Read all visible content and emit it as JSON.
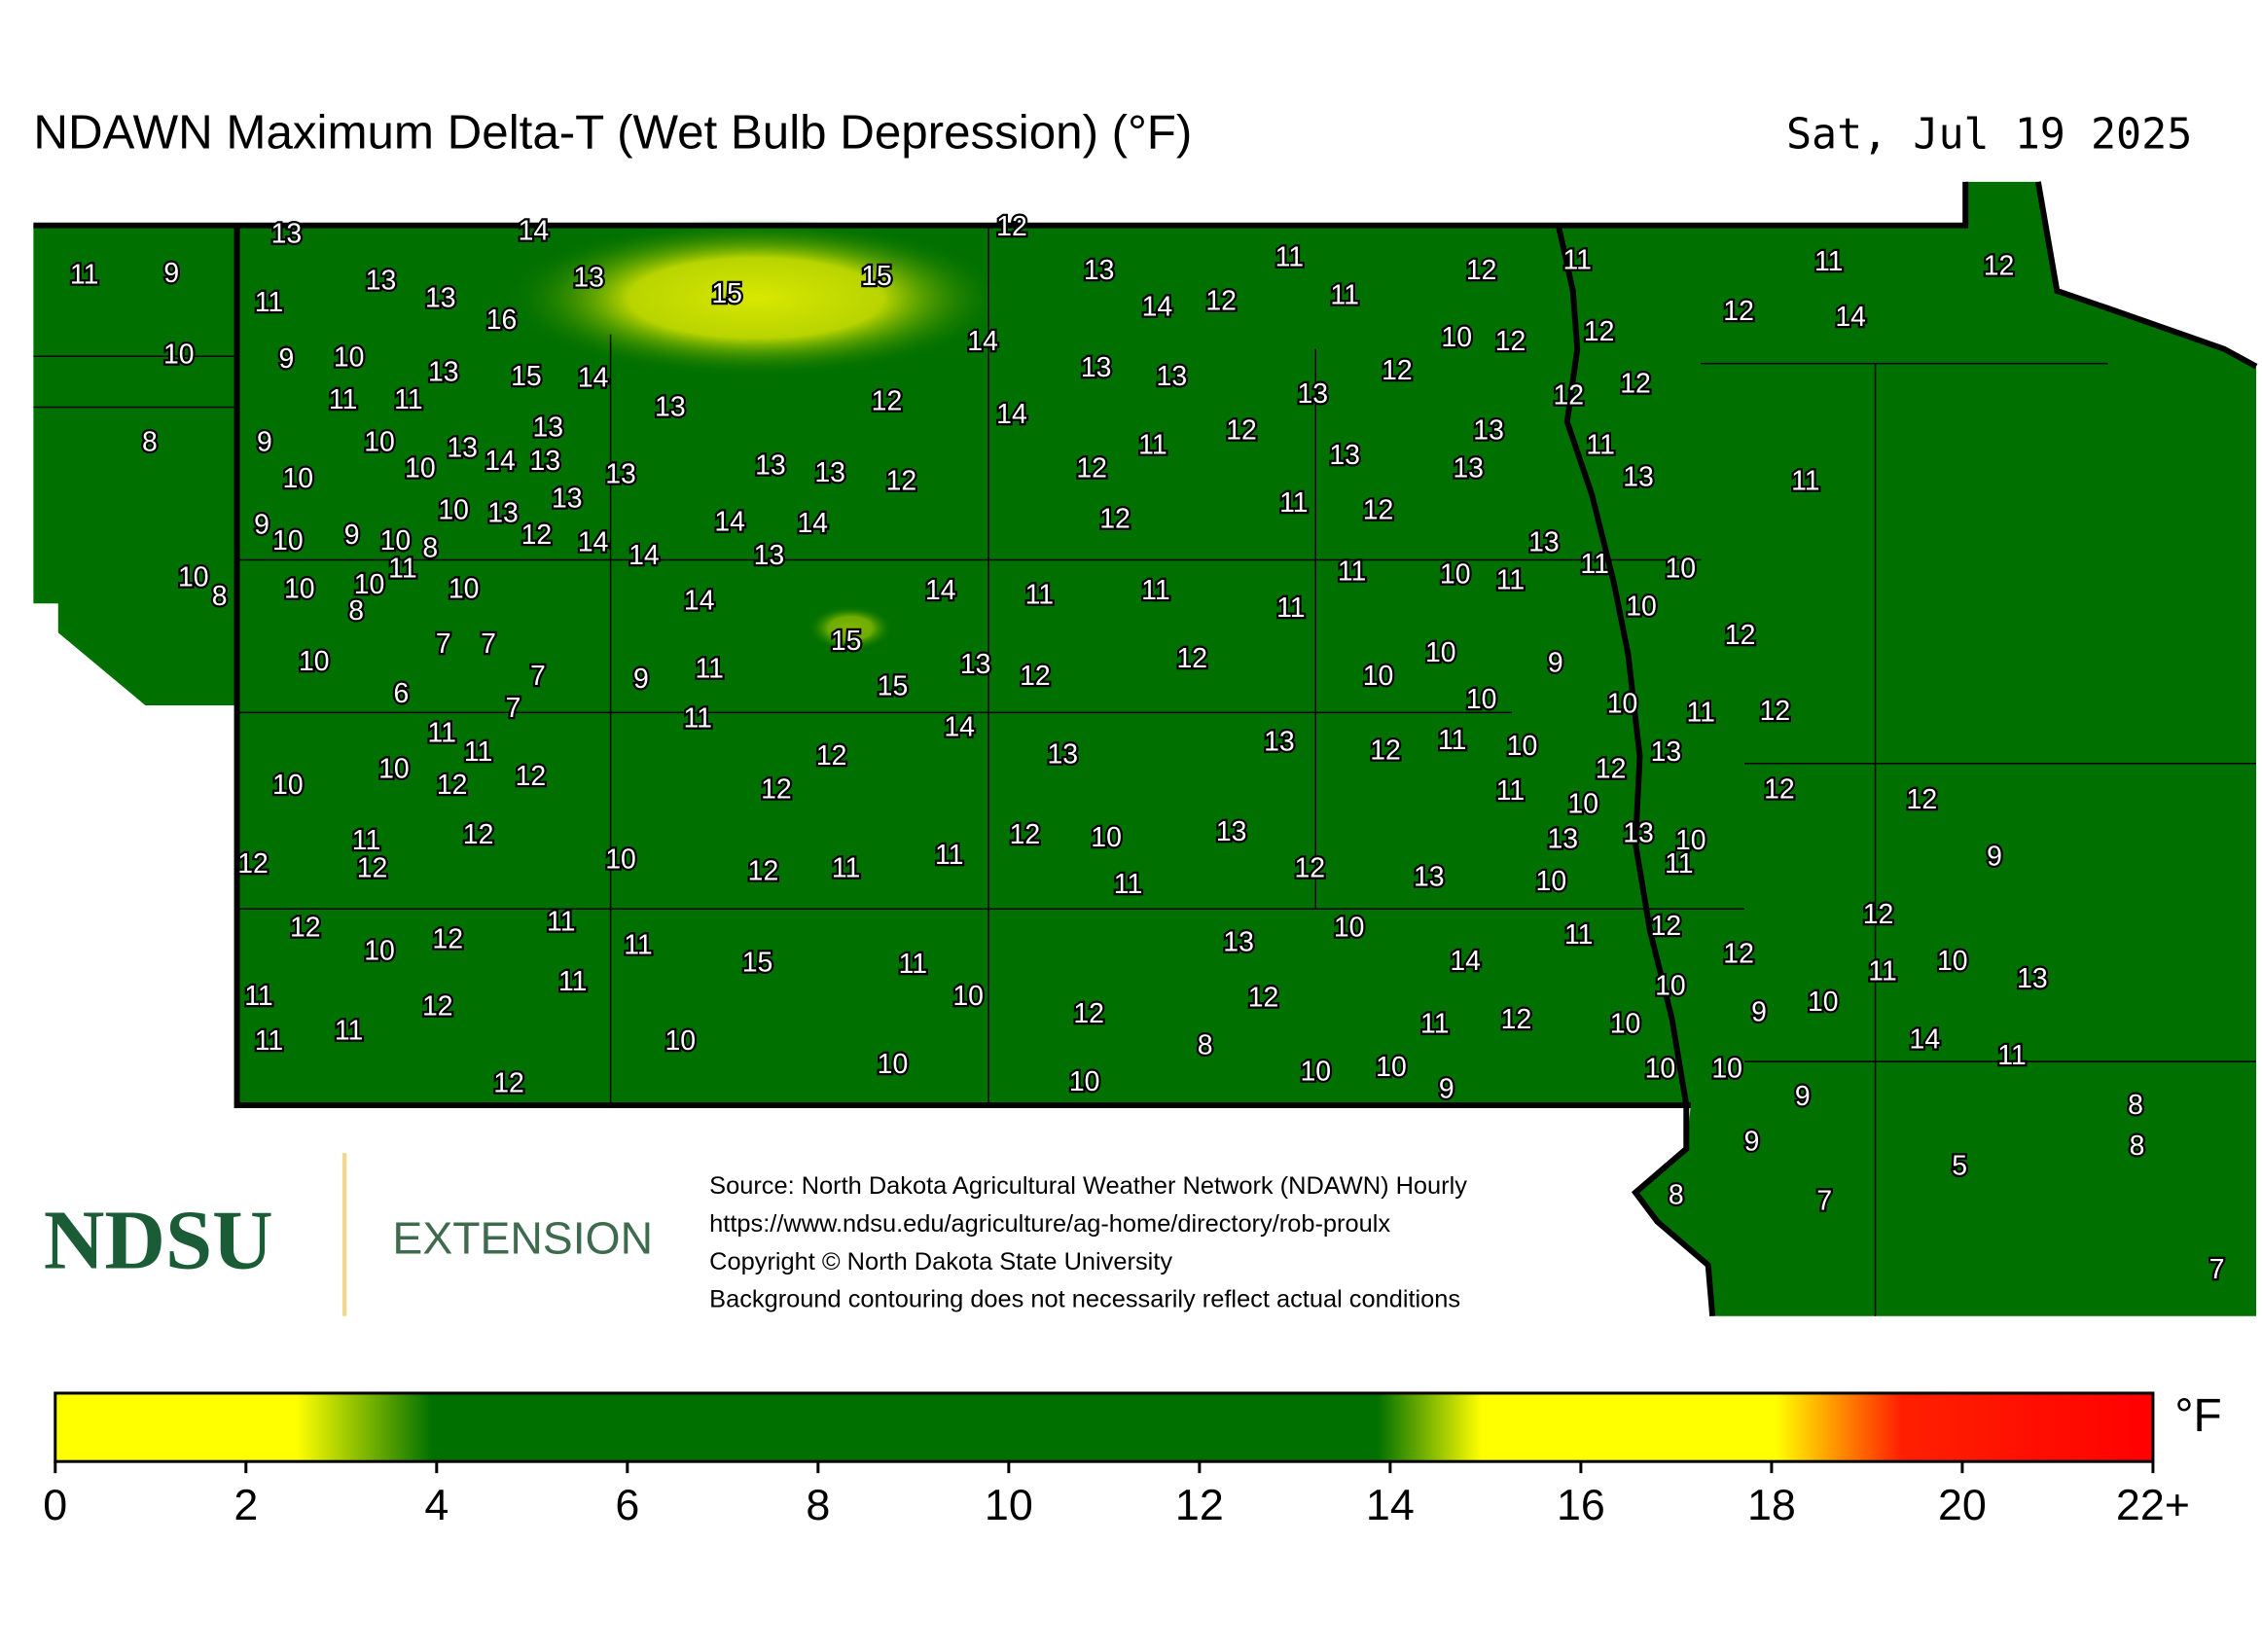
{
  "title": "NDAWN Maximum Delta-T (Wet Bulb Depression) (°F)",
  "date": "Sat, Jul 19 2025",
  "stations": [
    13,
    14,
    12,
    11,
    9,
    11,
    13,
    13,
    13,
    16,
    15,
    15,
    13,
    11,
    12,
    11,
    11,
    12,
    14,
    12,
    11,
    12,
    14,
    10,
    9,
    10,
    14,
    10,
    12,
    12,
    13,
    15,
    14,
    13,
    13,
    12,
    12,
    11,
    11,
    13,
    12,
    13,
    12,
    8,
    9,
    10,
    13,
    14,
    12,
    13,
    13,
    14,
    13,
    10,
    10,
    13,
    13,
    13,
    12,
    12,
    11,
    13,
    13,
    11,
    13,
    11,
    10,
    13,
    13,
    11,
    12,
    9,
    10,
    9,
    10,
    12,
    14,
    14,
    14,
    14,
    12,
    13,
    8,
    11,
    10,
    8,
    10,
    10,
    8,
    10,
    13,
    14,
    14,
    11,
    11,
    11,
    10,
    11,
    11,
    10,
    11,
    10,
    7,
    7,
    15,
    12,
    10,
    7,
    9,
    11,
    13,
    12,
    12,
    10,
    10,
    9,
    6,
    7,
    15,
    10,
    10,
    11,
    12,
    11,
    11,
    14,
    13,
    11,
    10,
    11,
    10,
    12,
    13,
    12,
    13,
    12,
    10,
    12,
    12,
    12,
    11,
    10,
    12,
    12,
    12,
    11,
    12,
    10,
    13,
    13,
    13,
    10,
    12,
    12,
    10,
    12,
    11,
    11,
    12,
    11,
    9,
    11,
    13,
    10,
    11,
    12,
    12,
    11,
    10,
    10,
    13,
    11,
    12,
    12,
    15,
    11,
    14,
    12,
    11,
    10,
    13,
    11,
    11,
    10,
    12,
    10,
    12,
    12,
    9,
    10,
    11,
    11,
    11,
    12,
    10,
    10,
    8,
    14,
    11,
    10,
    12,
    10,
    10,
    10,
    10,
    10,
    9,
    9,
    8,
    9,
    8,
    5,
    8,
    7,
    7
  ],
  "logo": {
    "name": "NDSU",
    "unit": "EXTENSION"
  },
  "notes": [
    "Source: North Dakota Agricultural Weather Network (NDAWN) Hourly",
    "https://www.ndsu.edu/agriculture/ag-home/directory/rob-proulx",
    "Copyright © North Dakota State University",
    "Background contouring does not necessarily reflect actual conditions"
  ],
  "colorbar": {
    "unit": "°F",
    "lim": [
      0,
      22
    ],
    "ticks": [
      0,
      2,
      4,
      6,
      8,
      10,
      12,
      14,
      16,
      18,
      20,
      {
        "value": 22,
        "label": "22+"
      }
    ]
  }
}
